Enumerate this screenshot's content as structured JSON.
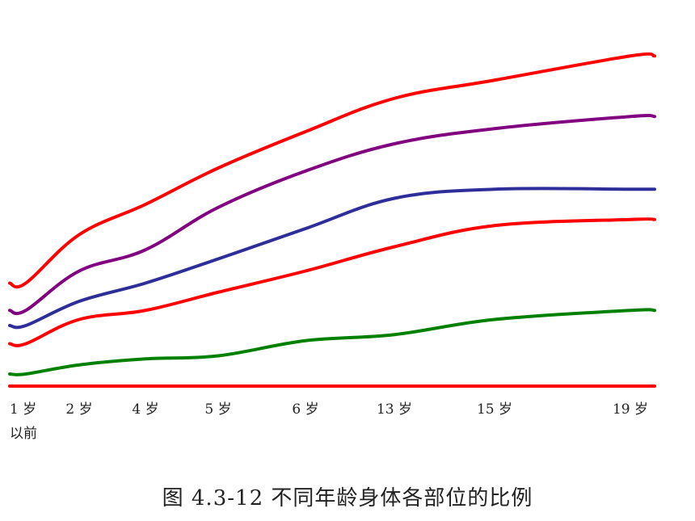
{
  "chart_data": {
    "type": "line",
    "title": "",
    "caption": "图 4.3-12   不同年龄身体各部位的比例",
    "categories": [
      "1 岁\n以前",
      "2 岁",
      "4 岁",
      "5 岁",
      "6 岁",
      "13 岁",
      "15 岁",
      "19 岁"
    ],
    "x": [
      0,
      1,
      2,
      3,
      4,
      5,
      6,
      7
    ],
    "ylim": [
      0,
      100
    ],
    "grid": false,
    "legend": "none",
    "series": [
      {
        "color": "#ff0000",
        "values": [
          0,
          0,
          0,
          0,
          0,
          0,
          0,
          0
        ]
      },
      {
        "color": "#008000",
        "values": [
          4,
          7,
          9,
          10,
          15,
          17,
          22,
          25
        ]
      },
      {
        "color": "#ff0000",
        "values": [
          14,
          22,
          25,
          31,
          38,
          46,
          53,
          55
        ]
      },
      {
        "color": "#2e2e9a",
        "values": [
          20,
          28,
          34,
          42,
          52,
          62,
          65,
          65
        ]
      },
      {
        "color": "#800080",
        "values": [
          25,
          38,
          45,
          59,
          71,
          80,
          85,
          89
        ]
      },
      {
        "color": "#ff0000",
        "values": [
          34,
          50,
          60,
          72,
          84,
          95,
          101,
          109
        ]
      }
    ]
  }
}
